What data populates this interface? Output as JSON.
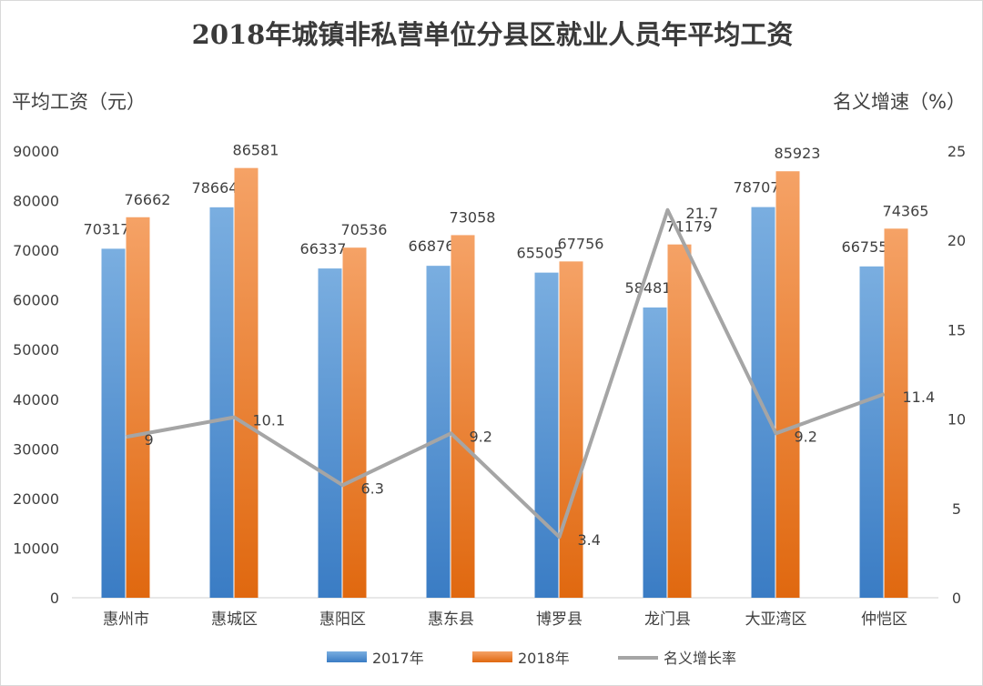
{
  "chart_data": {
    "type": "bar",
    "title": "2018年城镇非私营单位分县区就业人员年平均工资",
    "ylabel": "平均工资（元）",
    "y2label": "名义增速（%）",
    "ylim": [
      0,
      90000
    ],
    "yticks": [
      0,
      10000,
      20000,
      30000,
      40000,
      50000,
      60000,
      70000,
      80000,
      90000
    ],
    "y2lim": [
      0,
      25
    ],
    "y2ticks": [
      0,
      5,
      10,
      15,
      20,
      25
    ],
    "categories": [
      "惠州市",
      "惠城区",
      "惠阳区",
      "惠东县",
      "博罗县",
      "龙门县",
      "大亚湾区",
      "仲恺区"
    ],
    "series": [
      {
        "name": "2017年",
        "type": "bar",
        "axis": "left",
        "color": "#5b9bd5",
        "values": [
          70317,
          78664,
          66337,
          66876,
          65505,
          58481,
          78707,
          66755
        ]
      },
      {
        "name": "2018年",
        "type": "bar",
        "axis": "left",
        "color": "#ed7d31",
        "values": [
          76662,
          86581,
          70536,
          73058,
          67756,
          71179,
          85923,
          74365
        ]
      },
      {
        "name": "名义增长率",
        "type": "line",
        "axis": "right",
        "color": "#a5a5a5",
        "values": [
          9,
          10.1,
          6.3,
          9.2,
          3.4,
          21.7,
          9.2,
          11.4
        ]
      }
    ],
    "grid": false,
    "legend": "bottom"
  }
}
